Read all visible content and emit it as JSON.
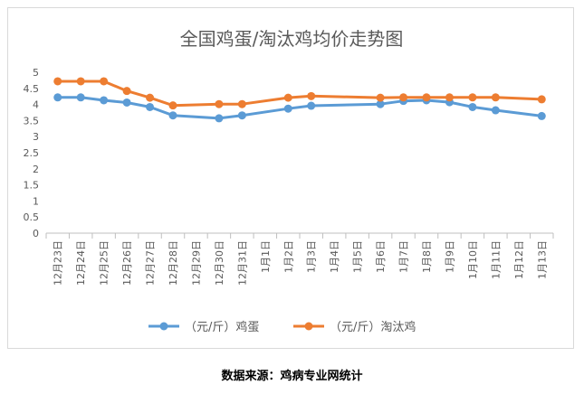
{
  "chart_data": {
    "type": "line",
    "title": "全国鸡蛋/淘汰鸡均价走势图",
    "categories": [
      "12月23日",
      "12月24日",
      "12月25日",
      "12月26日",
      "12月27日",
      "12月28日",
      "12月29日",
      "12月30日",
      "12月31日",
      "1月1日",
      "1月2日",
      "1月3日",
      "1月4日",
      "1月5日",
      "1月6日",
      "1月7日",
      "1月8日",
      "1月9日",
      "1月10日",
      "1月11日",
      "1月12日",
      "1月13日"
    ],
    "series": [
      {
        "name": "（元/斤）鸡蛋",
        "color": "#5b9bd5",
        "values": [
          4.22,
          4.22,
          4.13,
          4.06,
          3.92,
          3.66,
          null,
          3.57,
          3.66,
          null,
          3.87,
          3.96,
          null,
          null,
          4.01,
          4.11,
          4.13,
          4.07,
          3.92,
          3.82,
          null,
          3.64
        ]
      },
      {
        "name": "（元/斤）淘汰鸡",
        "color": "#ed7d31",
        "values": [
          4.72,
          4.72,
          4.72,
          4.42,
          4.21,
          3.97,
          null,
          4.01,
          4.01,
          null,
          4.21,
          4.26,
          null,
          null,
          4.21,
          4.22,
          4.22,
          4.22,
          4.22,
          4.22,
          null,
          4.16
        ]
      }
    ],
    "yticks": [
      "0",
      "0.5",
      "1",
      "1.5",
      "2",
      "2.5",
      "3",
      "3.5",
      "4",
      "4.5",
      "5"
    ],
    "ylim": [
      0,
      5
    ],
    "grid": false,
    "legend_position": "bottom"
  },
  "source_text": "数据来源：鸡病专业网统计"
}
